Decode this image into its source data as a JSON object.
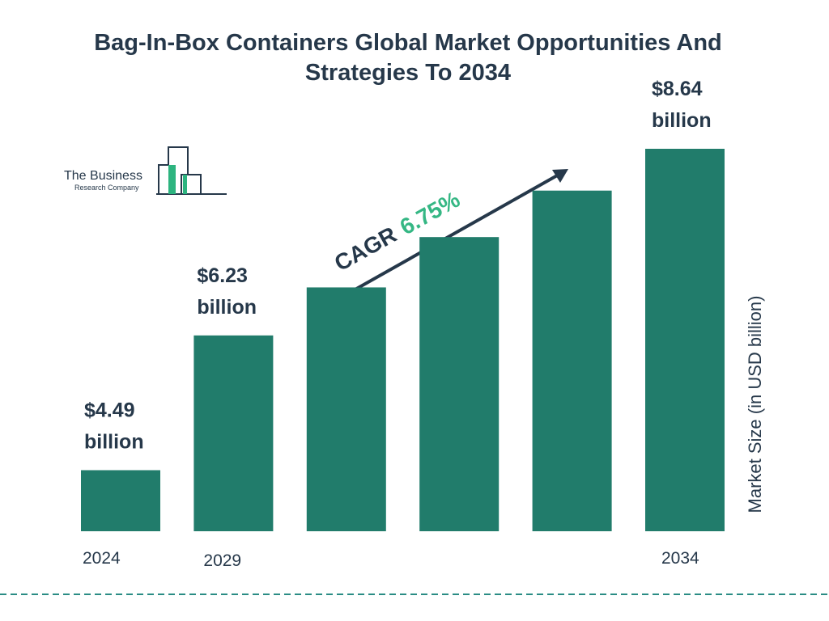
{
  "chart_data": {
    "type": "bar",
    "title": "Bag-In-Box Containers Global Market Opportunities And Strategies To 2034",
    "categories": [
      "2024",
      "2029",
      null,
      null,
      null,
      "2034"
    ],
    "values": [
      4.49,
      6.23,
      6.85,
      7.5,
      8.1,
      8.64
    ],
    "value_labels": [
      "$4.49 billion",
      "$6.23 billion",
      null,
      null,
      null,
      "$8.64 billion"
    ],
    "color": "#217c6b",
    "y_axis_label": "Market Size (in USD billion)",
    "annotation": {
      "label": "CAGR",
      "value": "6.75%"
    },
    "logo": {
      "name": "The Business",
      "subname": "Research Company"
    }
  }
}
